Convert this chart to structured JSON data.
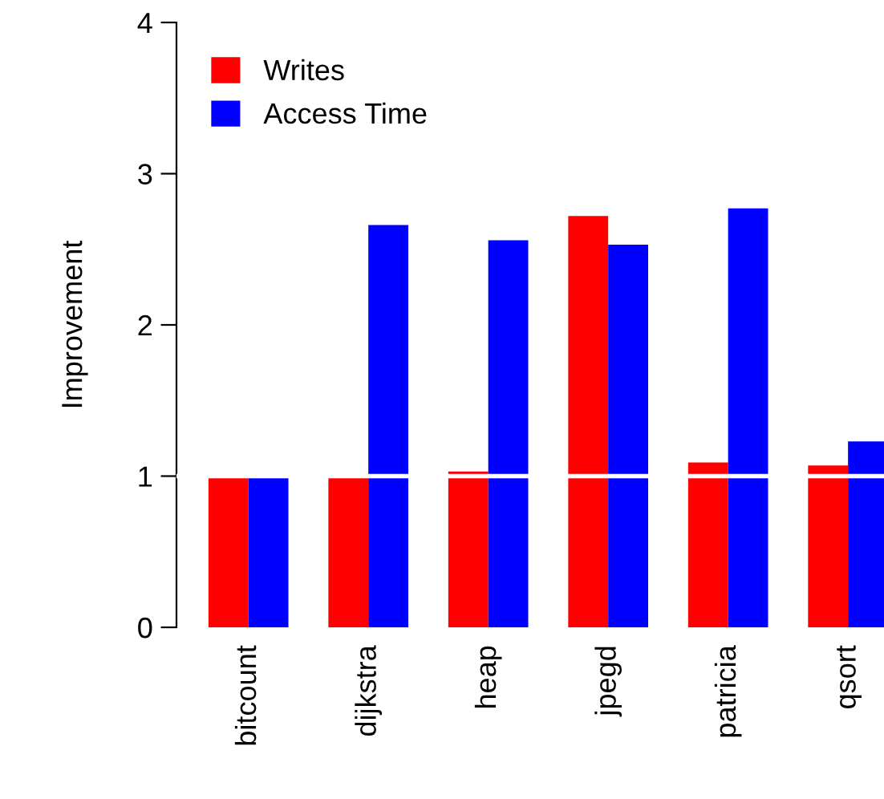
{
  "chart_data": {
    "type": "bar",
    "ylabel": "Improvement",
    "categories": [
      "bitcount",
      "dijkstra",
      "heap",
      "jpegd",
      "patricia",
      "qsort"
    ],
    "series": [
      {
        "name": "Writes",
        "color": "#ff0000",
        "values": [
          1.0,
          1.0,
          1.03,
          2.72,
          1.09,
          1.07
        ]
      },
      {
        "name": "Access Time",
        "color": "#0000ff",
        "values": [
          1.0,
          2.66,
          2.56,
          2.53,
          2.77,
          1.23
        ]
      }
    ],
    "ylim": [
      0,
      4
    ],
    "yticks": [
      0,
      1,
      2,
      3,
      4
    ],
    "grid": false,
    "legend": "top left",
    "ref_lines": [
      {
        "axis": "y",
        "value": 1,
        "color": "#ffffff",
        "line_style": "solid"
      }
    ]
  }
}
